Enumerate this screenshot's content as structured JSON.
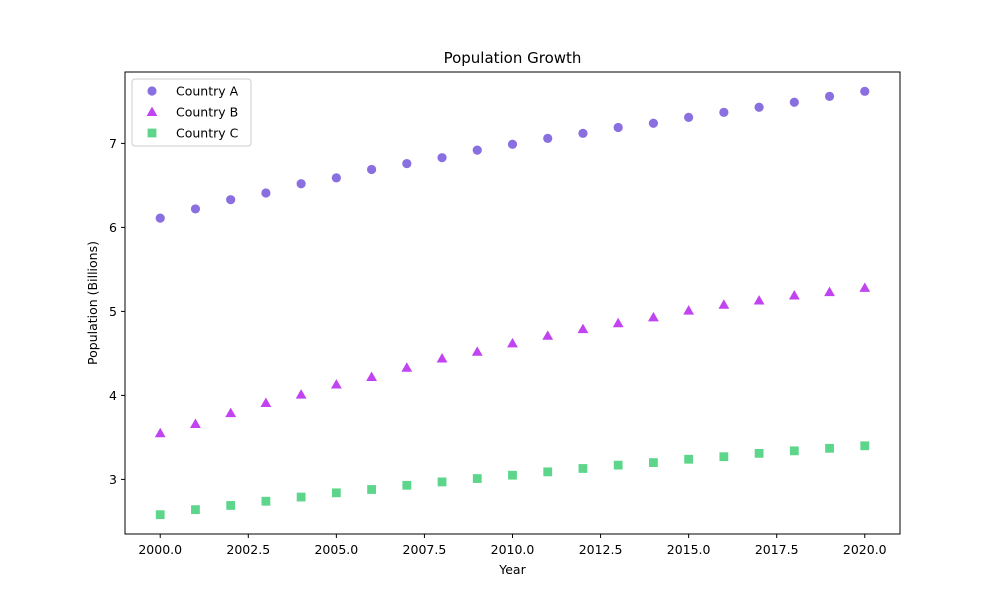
{
  "chart_data": {
    "type": "scatter",
    "title": "Population Growth",
    "xlabel": "Year",
    "ylabel": "Population (Billions)",
    "xlim": [
      1999.0,
      2021.0
    ],
    "ylim": [
      2.35,
      7.85
    ],
    "xticks": [
      2000.0,
      2002.5,
      2005.0,
      2007.5,
      2010.0,
      2012.5,
      2015.0,
      2017.5,
      2020.0
    ],
    "xtick_labels": [
      "2000.0",
      "2002.5",
      "2005.0",
      "2007.5",
      "2010.0",
      "2012.5",
      "2015.0",
      "2017.5",
      "2020.0"
    ],
    "yticks": [
      3,
      4,
      5,
      6,
      7
    ],
    "ytick_labels": [
      "3",
      "4",
      "5",
      "6",
      "7"
    ],
    "grid": false,
    "legend_position": "top-left",
    "x": [
      2000,
      2001,
      2002,
      2003,
      2004,
      2005,
      2006,
      2007,
      2008,
      2009,
      2010,
      2011,
      2012,
      2013,
      2014,
      2015,
      2016,
      2017,
      2018,
      2019,
      2020
    ],
    "series": [
      {
        "name": "Country A",
        "marker": "circle",
        "color": "#8a6fe0",
        "values": [
          6.11,
          6.22,
          6.33,
          6.41,
          6.52,
          6.59,
          6.69,
          6.76,
          6.83,
          6.92,
          6.99,
          7.06,
          7.12,
          7.19,
          7.24,
          7.31,
          7.37,
          7.43,
          7.49,
          7.56,
          7.62
        ]
      },
      {
        "name": "Country B",
        "marker": "triangle",
        "color": "#c144f0",
        "values": [
          3.55,
          3.66,
          3.79,
          3.91,
          4.01,
          4.13,
          4.22,
          4.33,
          4.44,
          4.52,
          4.62,
          4.71,
          4.79,
          4.86,
          4.93,
          5.01,
          5.08,
          5.13,
          5.19,
          5.23,
          5.28
        ]
      },
      {
        "name": "Country C",
        "marker": "square",
        "color": "#5dd68c",
        "values": [
          2.58,
          2.64,
          2.69,
          2.74,
          2.79,
          2.84,
          2.88,
          2.93,
          2.97,
          3.01,
          3.05,
          3.09,
          3.13,
          3.17,
          3.2,
          3.24,
          3.27,
          3.31,
          3.34,
          3.37,
          3.4
        ]
      }
    ]
  }
}
